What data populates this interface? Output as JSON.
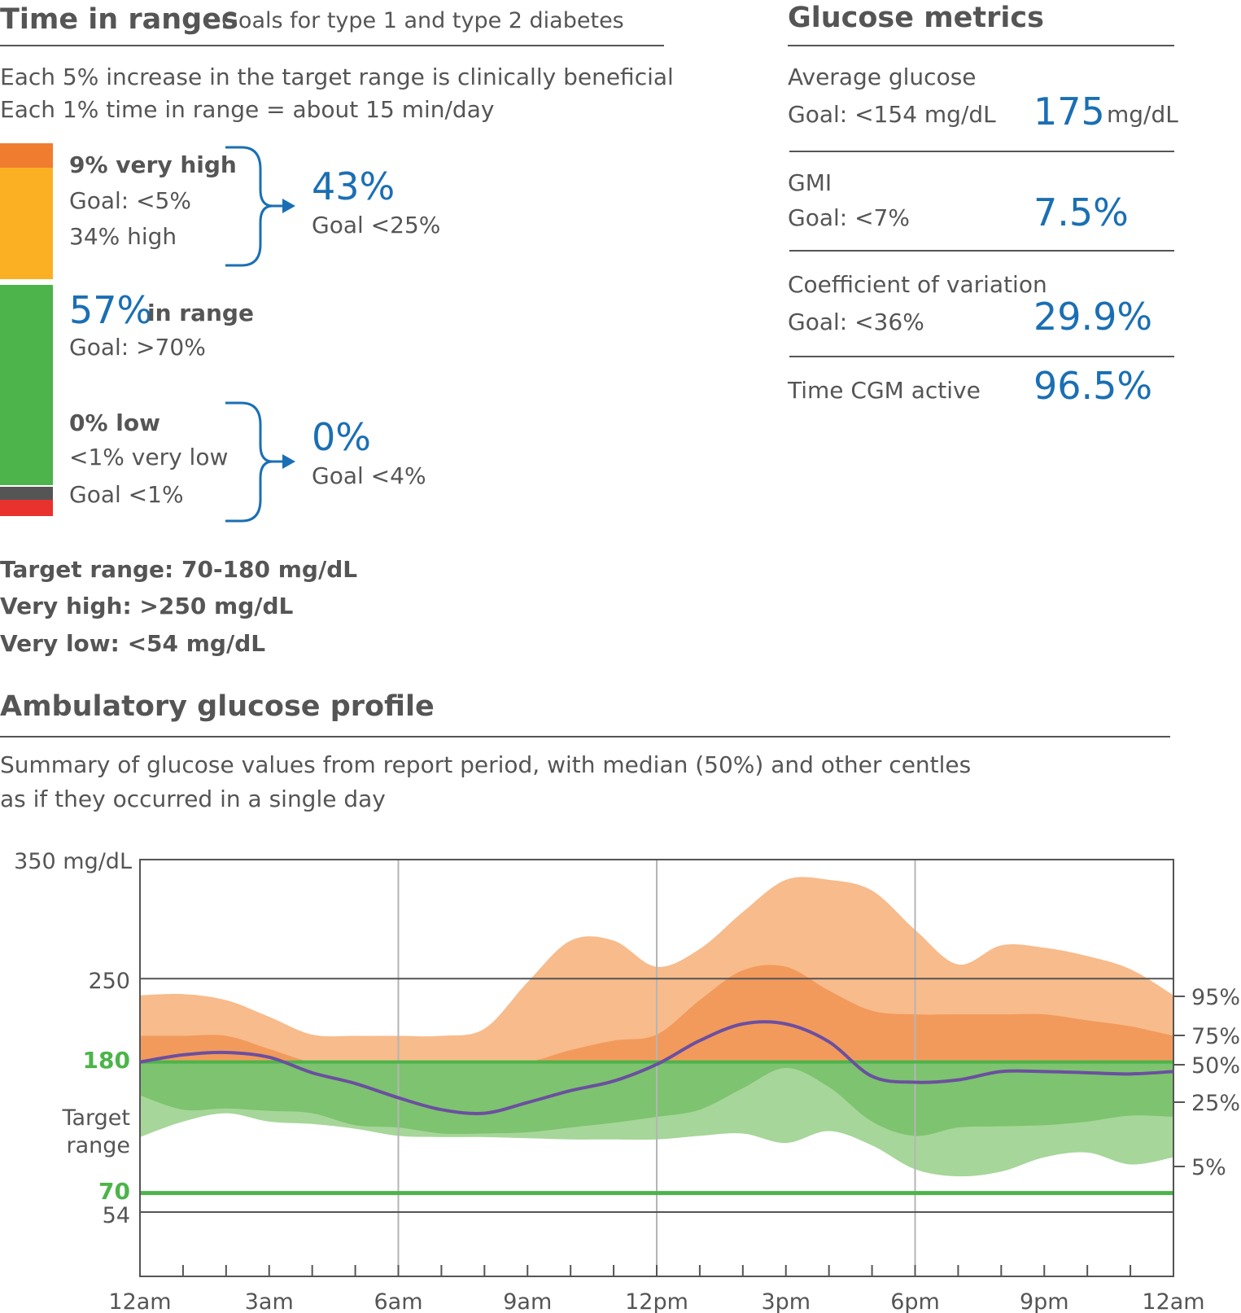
{
  "time_in_ranges": {
    "title": "Time in ranges",
    "subtitle": "Goals for type 1 and type 2 diabetes",
    "note1": "Each 5% increase in the target range is clinically beneficial",
    "note2": "Each 1% time in range = about 15 min/day",
    "very_high_label": "9% very high",
    "very_high_goal": "Goal: <5%",
    "high_label": "34% high",
    "high_total": "43%",
    "high_total_goal": "Goal <25%",
    "in_range_value": "57%",
    "in_range_label": "in range",
    "in_range_goal": "Goal: >70%",
    "low_label": "0% low",
    "very_low_label": "<1% very low",
    "very_low_goal": "Goal <1%",
    "low_total": "0%",
    "low_total_goal": "Goal <4%",
    "target_range": "Target range: 70-180 mg/dL",
    "very_high_def": "Very high: >250 mg/dL",
    "very_low_def": "Very low: <54 mg/dL",
    "bar_segments": [
      {
        "name": "very high",
        "percent": 9,
        "color": "#f07c30"
      },
      {
        "name": "high",
        "percent": 34,
        "color": "#fbb024"
      },
      {
        "name": "in range",
        "percent": 57,
        "color": "#4cb44a"
      },
      {
        "name": "low",
        "percent": 0,
        "color": "#555555"
      },
      {
        "name": "very low",
        "percent": 1,
        "color": "#e8322e"
      }
    ]
  },
  "glucose_metrics": {
    "title": "Glucose metrics",
    "avg_label": "Average glucose",
    "avg_goal": "Goal: <154 mg/dL",
    "avg_value": "175",
    "avg_unit": "mg/dL",
    "gmi_label": "GMI",
    "gmi_goal": "Goal: <7%",
    "gmi_value": "7.5%",
    "cv_label": "Coefficient of variation",
    "cv_goal": "Goal: <36%",
    "cv_value": "29.9%",
    "cgm_label": "Time CGM active",
    "cgm_value": "96.5%"
  },
  "agp": {
    "title": "Ambulatory glucose profile",
    "desc1": "Summary of glucose values from report period, with median (50%) and other centles",
    "desc2": "as if they occurred in a single day",
    "y_top_label": "350 mg/dL",
    "y_250": "250",
    "y_180": "180",
    "target_label_1": "Target",
    "target_label_2": "range",
    "y_70": "70",
    "y_54": "54",
    "right_labels": [
      "95%",
      "75%",
      "50%",
      "25%",
      "5%"
    ],
    "x_labels": [
      "12am",
      "3am",
      "6am",
      "9am",
      "12pm",
      "3pm",
      "6pm",
      "9pm",
      "12am"
    ]
  },
  "chart_data": {
    "type": "area",
    "title": "Ambulatory glucose profile",
    "xlabel": "",
    "ylabel": "mg/dL",
    "x_unit": "hours",
    "x": [
      0,
      1,
      2,
      3,
      4,
      5,
      6,
      7,
      8,
      9,
      10,
      11,
      12,
      13,
      14,
      15,
      16,
      17,
      18,
      19,
      20,
      21,
      22,
      23,
      24
    ],
    "xlim": [
      0,
      24
    ],
    "ylim": [
      0,
      350
    ],
    "y_ticks": [
      54,
      70,
      180,
      250,
      350
    ],
    "target_range": [
      70,
      180
    ],
    "x_tick_labels": [
      "12am",
      "3am",
      "6am",
      "9am",
      "12pm",
      "3pm",
      "6pm",
      "9pm",
      "12am"
    ],
    "series": [
      {
        "name": "95%",
        "values": [
          236,
          237,
          232,
          218,
          203,
          202,
          202,
          202,
          208,
          247,
          282,
          282,
          260,
          275,
          306,
          333,
          333,
          324,
          291,
          262,
          278,
          276,
          269,
          258,
          236
        ]
      },
      {
        "name": "75%",
        "values": [
          202,
          202,
          202,
          191,
          180,
          180,
          180,
          180,
          180,
          180,
          190,
          198,
          203,
          232,
          257,
          260,
          240,
          223,
          220,
          220,
          220,
          220,
          215,
          210,
          202
        ]
      },
      {
        "name": "50%",
        "values": [
          180,
          186,
          188,
          184,
          171,
          162,
          150,
          140,
          137,
          146,
          156,
          164,
          178,
          198,
          212,
          212,
          197,
          168,
          163,
          165,
          172,
          172,
          171,
          170,
          172
        ]
      },
      {
        "name": "25%",
        "values": [
          152,
          140,
          141,
          139,
          137,
          127,
          125,
          120,
          120,
          121,
          125,
          129,
          134,
          140,
          158,
          175,
          159,
          130,
          118,
          125,
          126,
          127,
          130,
          135,
          134
        ]
      },
      {
        "name": "5%",
        "values": [
          117,
          130,
          137,
          130,
          128,
          124,
          118,
          117,
          117,
          116,
          115,
          115,
          115,
          118,
          120,
          112,
          122,
          110,
          90,
          84,
          88,
          100,
          104,
          94,
          100
        ]
      }
    ],
    "legend": "right",
    "grid": true
  }
}
